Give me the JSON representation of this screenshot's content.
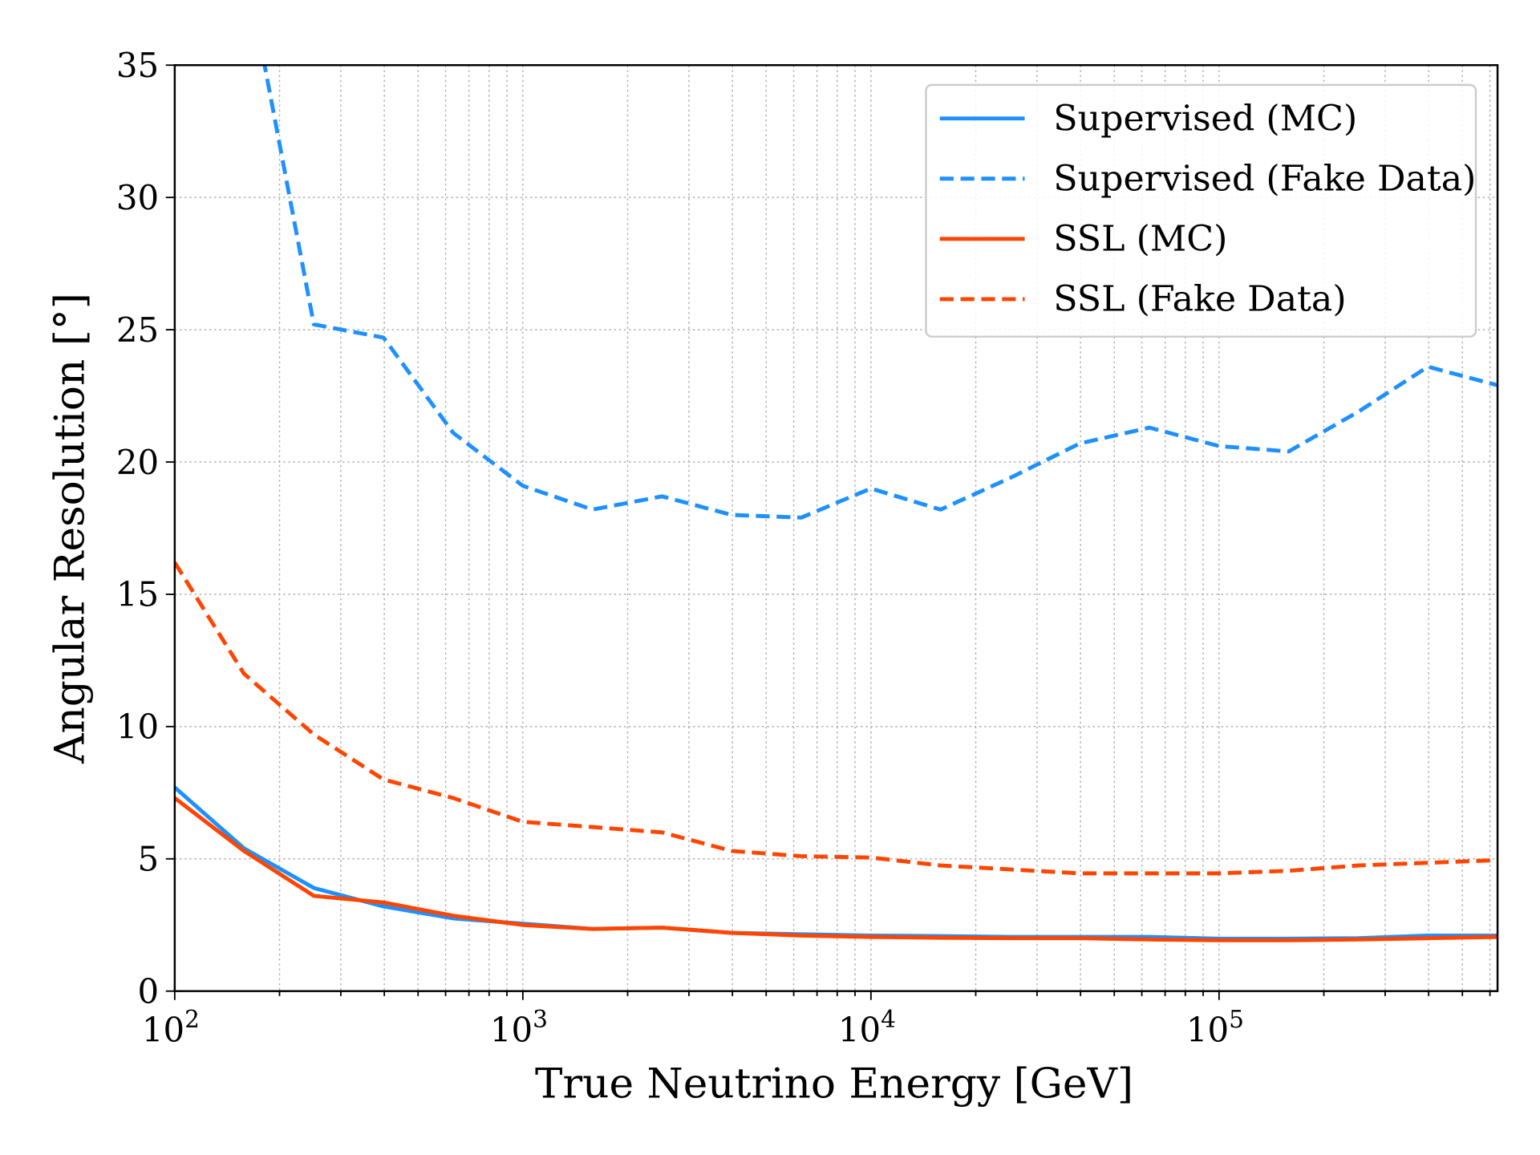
{
  "chart_data": {
    "type": "line",
    "title": "",
    "xlabel": "True Neutrino Energy [GeV]",
    "ylabel": "Angular Resolution [°]",
    "xscale": "log",
    "xlim": [
      100,
      630957
    ],
    "ylim": [
      0,
      35
    ],
    "grid": true,
    "legend_placement": "top-right",
    "xticks": [
      {
        "value": 100,
        "base": "10",
        "exp": "2"
      },
      {
        "value": 1000,
        "base": "10",
        "exp": "3"
      },
      {
        "value": 10000,
        "base": "10",
        "exp": "4"
      },
      {
        "value": 100000,
        "base": "10",
        "exp": "5"
      }
    ],
    "yticks": [
      0,
      5,
      10,
      15,
      20,
      25,
      30,
      35
    ],
    "x": [
      100,
      158,
      251,
      398,
      631,
      1000,
      1585,
      2512,
      3981,
      6310,
      10000,
      15849,
      25119,
      39811,
      63096,
      100000,
      158489,
      251189,
      398107,
      630957
    ],
    "series": [
      {
        "name": "Supervised (MC)",
        "color": "#1e90ff",
        "style": "solid",
        "values": [
          7.7,
          5.4,
          3.9,
          3.2,
          2.75,
          2.55,
          2.35,
          2.4,
          2.2,
          2.15,
          2.1,
          2.08,
          2.05,
          2.05,
          2.05,
          1.98,
          1.98,
          2.0,
          2.1,
          2.1
        ]
      },
      {
        "name": "Supervised (Fake Data)",
        "color": "#1e90ff",
        "style": "dashed",
        "values": [
          null,
          39.1,
          25.2,
          24.7,
          21.1,
          19.1,
          18.2,
          18.7,
          18.0,
          17.9,
          19.0,
          18.2,
          19.4,
          20.7,
          21.3,
          20.6,
          20.4,
          21.9,
          23.6,
          22.9
        ]
      },
      {
        "name": "SSL (MC)",
        "color": "#ff4500",
        "style": "solid",
        "values": [
          7.3,
          5.3,
          3.6,
          3.35,
          2.85,
          2.5,
          2.35,
          2.4,
          2.2,
          2.1,
          2.05,
          2.02,
          2.0,
          2.0,
          1.95,
          1.92,
          1.92,
          1.95,
          2.0,
          2.05
        ]
      },
      {
        "name": "SSL (Fake Data)",
        "color": "#ff4500",
        "style": "dashed",
        "values": [
          16.2,
          12.0,
          9.7,
          8.0,
          7.3,
          6.4,
          6.2,
          6.0,
          5.3,
          5.1,
          5.05,
          4.75,
          4.6,
          4.45,
          4.45,
          4.45,
          4.55,
          4.75,
          4.85,
          4.95
        ]
      }
    ]
  }
}
